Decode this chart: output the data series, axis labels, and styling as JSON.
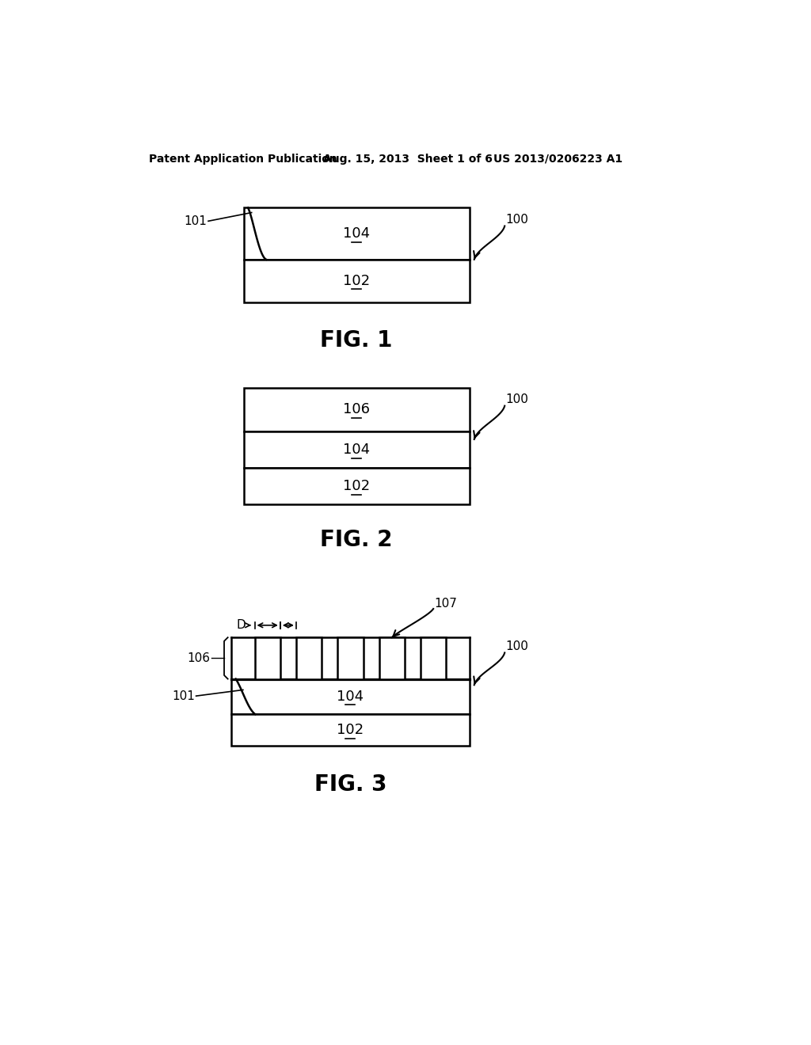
{
  "bg_color": "#ffffff",
  "header_left": "Patent Application Publication",
  "header_mid": "Aug. 15, 2013  Sheet 1 of 6",
  "header_right": "US 2013/0206223 A1",
  "fig1_caption": "FIG. 1",
  "fig2_caption": "FIG. 2",
  "fig3_caption": "FIG. 3",
  "label_100": "100",
  "label_101": "101",
  "label_102": "102",
  "label_104": "104",
  "label_106": "106",
  "label_107": "107",
  "label_D": "D"
}
